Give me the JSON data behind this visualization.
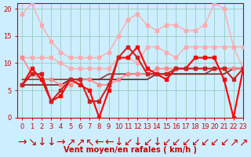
{
  "xlabel": "Vent moyen/en rafales ( km/h )",
  "bg_color": "#cceeff",
  "grid_color": "#99ccbb",
  "xlim": [
    -0.5,
    23
  ],
  "ylim": [
    0,
    21
  ],
  "yticks": [
    0,
    5,
    10,
    15,
    20
  ],
  "xticks": [
    0,
    1,
    2,
    3,
    4,
    5,
    6,
    7,
    8,
    9,
    10,
    11,
    12,
    13,
    14,
    15,
    16,
    17,
    18,
    19,
    20,
    21,
    22,
    23
  ],
  "lines": [
    {
      "x": [
        0,
        1,
        2,
        3,
        4,
        5,
        6,
        7,
        8,
        9,
        10,
        11,
        12,
        13,
        14,
        15,
        16,
        17,
        18,
        19,
        20,
        21,
        22,
        23
      ],
      "y": [
        19,
        21,
        17,
        14,
        12,
        11,
        11,
        11,
        11,
        12,
        15,
        18,
        19,
        17,
        16,
        17,
        17,
        16,
        16,
        17,
        21,
        20,
        13,
        13
      ],
      "color": "#ffaaaa",
      "lw": 1.0,
      "marker": "s",
      "ms": 2.5
    },
    {
      "x": [
        0,
        1,
        2,
        3,
        4,
        5,
        6,
        7,
        8,
        9,
        10,
        11,
        12,
        13,
        14,
        15,
        16,
        17,
        18,
        19,
        20,
        21,
        22,
        23
      ],
      "y": [
        11,
        11,
        11,
        11,
        10,
        9,
        9,
        9,
        9,
        9,
        11,
        11,
        10,
        13,
        13,
        12,
        11,
        13,
        13,
        13,
        13,
        13,
        13,
        9
      ],
      "color": "#ffaaaa",
      "lw": 1.0,
      "marker": "s",
      "ms": 2.5
    },
    {
      "x": [
        0,
        1,
        2,
        3,
        4,
        5,
        6,
        7,
        8,
        9,
        10,
        11,
        12,
        13,
        14,
        15,
        16,
        17,
        18,
        19,
        20,
        21,
        22,
        23
      ],
      "y": [
        11,
        8,
        7,
        7,
        6,
        6,
        7,
        7,
        6,
        6,
        7,
        8,
        8,
        8,
        9,
        9,
        9,
        9,
        9,
        9,
        9,
        9,
        9,
        9
      ],
      "color": "#ff8888",
      "lw": 1.2,
      "marker": "s",
      "ms": 2.5
    },
    {
      "x": [
        0,
        1,
        2,
        3,
        4,
        5,
        6,
        7,
        8,
        9,
        10,
        11,
        12,
        13,
        14,
        15,
        16,
        17,
        18,
        19,
        20,
        21,
        22,
        23
      ],
      "y": [
        6,
        9,
        7,
        3,
        4,
        7,
        6,
        5,
        0,
        5,
        11,
        11,
        13,
        9,
        8,
        7,
        9,
        9,
        11,
        11,
        11,
        7,
        0,
        9
      ],
      "color": "#ff0000",
      "lw": 1.5,
      "marker": "s",
      "ms": 2.5
    },
    {
      "x": [
        0,
        1,
        2,
        3,
        4,
        5,
        6,
        7,
        8,
        9,
        10,
        11,
        12,
        13,
        14,
        15,
        16,
        17,
        18,
        19,
        20,
        21,
        22,
        23
      ],
      "y": [
        6,
        8,
        8,
        3,
        5,
        7,
        7,
        3,
        3,
        6,
        11,
        13,
        11,
        8,
        8,
        8,
        9,
        9,
        9,
        9,
        9,
        9,
        7,
        9
      ],
      "color": "#cc2222",
      "lw": 1.5,
      "marker": "s",
      "ms": 2.5
    },
    {
      "x": [
        0,
        1,
        2,
        3,
        4,
        5,
        6,
        7,
        8,
        9,
        10,
        11,
        12,
        13,
        14,
        15,
        16,
        17,
        18,
        19,
        20,
        21,
        22,
        23
      ],
      "y": [
        7,
        7,
        7,
        7,
        7,
        7,
        7,
        7,
        7,
        8,
        8,
        8,
        8,
        8,
        8,
        8,
        8,
        8,
        8,
        8,
        9,
        9,
        9,
        9
      ],
      "color": "#993333",
      "lw": 1.2,
      "marker": null,
      "ms": 0
    },
    {
      "x": [
        0,
        1,
        2,
        3,
        4,
        5,
        6,
        7,
        8,
        9,
        10,
        11,
        12,
        13,
        14,
        15,
        16,
        17,
        18,
        19,
        20,
        21,
        22,
        23
      ],
      "y": [
        6,
        6,
        6,
        6,
        6,
        7,
        7,
        7,
        7,
        7,
        7,
        7,
        7,
        7,
        8,
        8,
        8,
        8,
        8,
        8,
        8,
        8,
        9,
        9
      ],
      "color": "#772222",
      "lw": 1.2,
      "marker": null,
      "ms": 0
    }
  ],
  "wind_dirs": [
    "→",
    "↘",
    "↓",
    "↓",
    "→",
    "↗",
    "↗",
    "↖",
    "←",
    "←",
    "↓",
    "↙",
    "↓",
    "↙",
    "↓",
    "↙",
    "↙",
    "↙",
    "↙",
    "↙",
    "↙",
    "↙",
    "↗",
    "↗"
  ],
  "font_color": "#cc0000",
  "tick_fontsize": 6,
  "xlabel_fontsize": 7
}
